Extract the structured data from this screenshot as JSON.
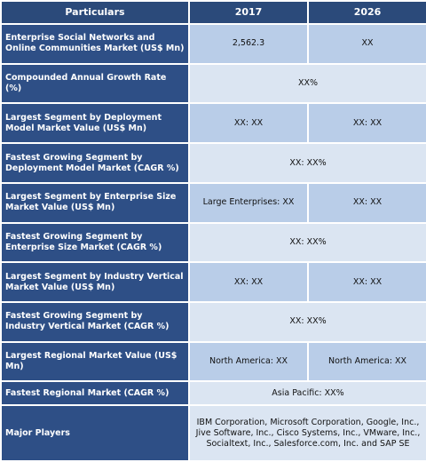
{
  "table": {
    "header": [
      "Particulars",
      "2017",
      "2026"
    ],
    "rows": [
      {
        "label": "Enterprise Social Networks and Online Communities Market (US$ Mn)",
        "cells": [
          "2,562.3",
          "XX"
        ]
      },
      {
        "label": "Compounded Annual Growth Rate (%)",
        "cells": [
          "XX%"
        ]
      },
      {
        "label": "Largest Segment by Deployment Model Market Value (US$ Mn)",
        "cells": [
          "XX: XX",
          "XX: XX"
        ]
      },
      {
        "label": "Fastest Growing Segment by Deployment Model Market (CAGR %)",
        "cells": [
          "XX: XX%"
        ]
      },
      {
        "label": "Largest Segment by Enterprise Size Market Value (US$ Mn)",
        "cells": [
          "Large Enterprises: XX",
          "XX: XX"
        ]
      },
      {
        "label": "Fastest Growing Segment by Enterprise Size Market (CAGR %)",
        "cells": [
          "XX: XX%"
        ]
      },
      {
        "label": "Largest Segment by Industry Vertical Market Value (US$ Mn)",
        "cells": [
          "XX: XX",
          "XX: XX"
        ]
      },
      {
        "label": "Fastest Growing Segment by Industry Vertical Market (CAGR %)",
        "cells": [
          "XX: XX%"
        ]
      },
      {
        "label": "Largest Regional Market Value (US$ Mn)",
        "cells": [
          "North America: XX",
          "North America: XX"
        ]
      },
      {
        "label": "Fastest Regional Market (CAGR %)",
        "cells": [
          "Asia Pacific: XX%"
        ]
      },
      {
        "label": "Major Players",
        "cells": [
          "IBM Corporation, Microsoft Corporation, Google, Inc., Jive Software, Inc., Cisco Systems, Inc., VMware, Inc., Socialtext, Inc., Salesforce.com, Inc. and SAP SE"
        ]
      }
    ]
  }
}
